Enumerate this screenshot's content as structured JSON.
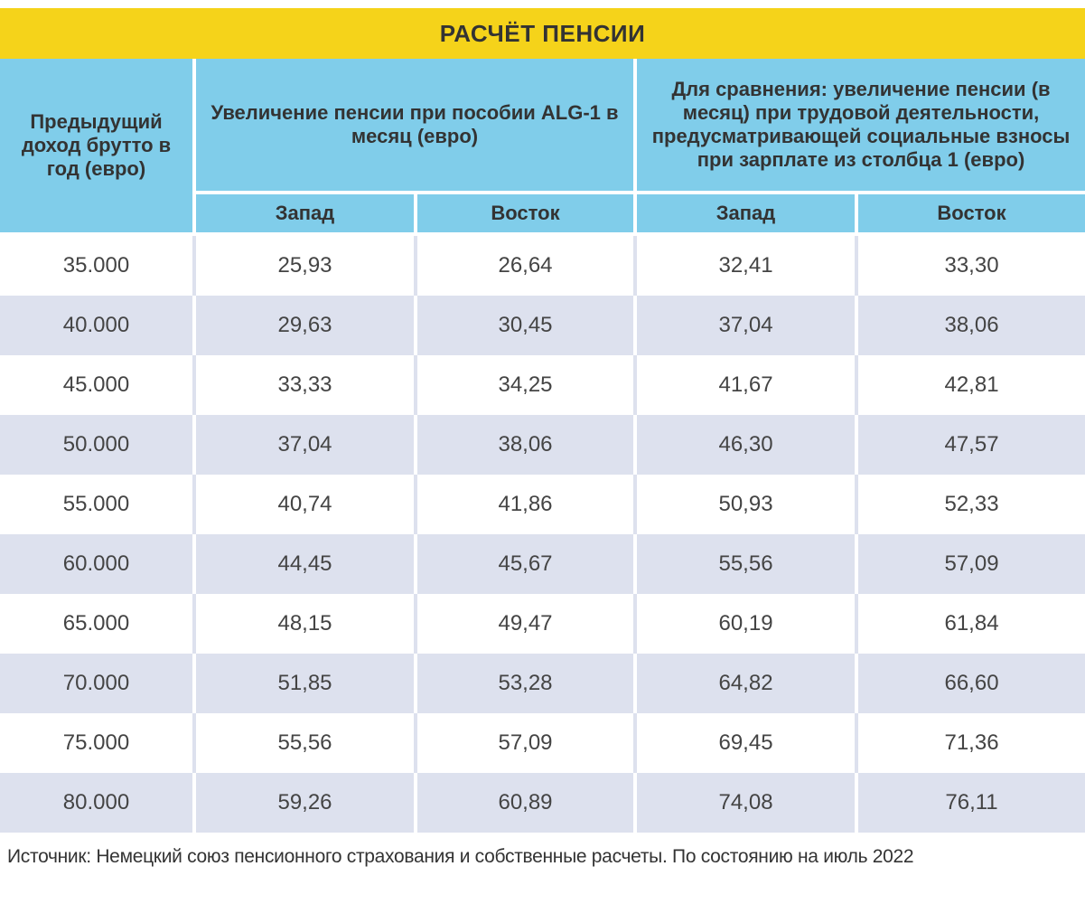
{
  "title": "РАСЧЁТ ПЕНСИИ",
  "headers": {
    "col0": "Предыдущий доход брутто в год (евро)",
    "group1": "Увеличение пенсии при пособии ALG-1 в месяц (евро)",
    "group2": "Для сравнения: увеличение пенсии (в месяц) при трудовой деятельности, предусматривающей социальные взносы при зарплате из столбца 1 (евро)",
    "sub": [
      "Запад",
      "Восток",
      "Запад",
      "Восток"
    ]
  },
  "rows": [
    [
      "35.000",
      "25,93",
      "26,64",
      "32,41",
      "33,30"
    ],
    [
      "40.000",
      "29,63",
      "30,45",
      "37,04",
      "38,06"
    ],
    [
      "45.000",
      "33,33",
      "34,25",
      "41,67",
      "42,81"
    ],
    [
      "50.000",
      "37,04",
      "38,06",
      "46,30",
      "47,57"
    ],
    [
      "55.000",
      "40,74",
      "41,86",
      "50,93",
      "52,33"
    ],
    [
      "60.000",
      "44,45",
      "45,67",
      "55,56",
      "57,09"
    ],
    [
      "65.000",
      "48,15",
      "49,47",
      "60,19",
      "61,84"
    ],
    [
      "70.000",
      "51,85",
      "53,28",
      "64,82",
      "66,60"
    ],
    [
      "75.000",
      "55,56",
      "57,09",
      "69,45",
      "71,36"
    ],
    [
      "80.000",
      "59,26",
      "60,89",
      "74,08",
      "76,11"
    ]
  ],
  "footnote": "Источник: Немецкий союз пенсионного страхования и собственные расчеты. По состоянию на июль 2022",
  "colors": {
    "title_bg": "#f5d31a",
    "header_bg": "#80cdea",
    "stripe_bg": "#dde1ee"
  }
}
